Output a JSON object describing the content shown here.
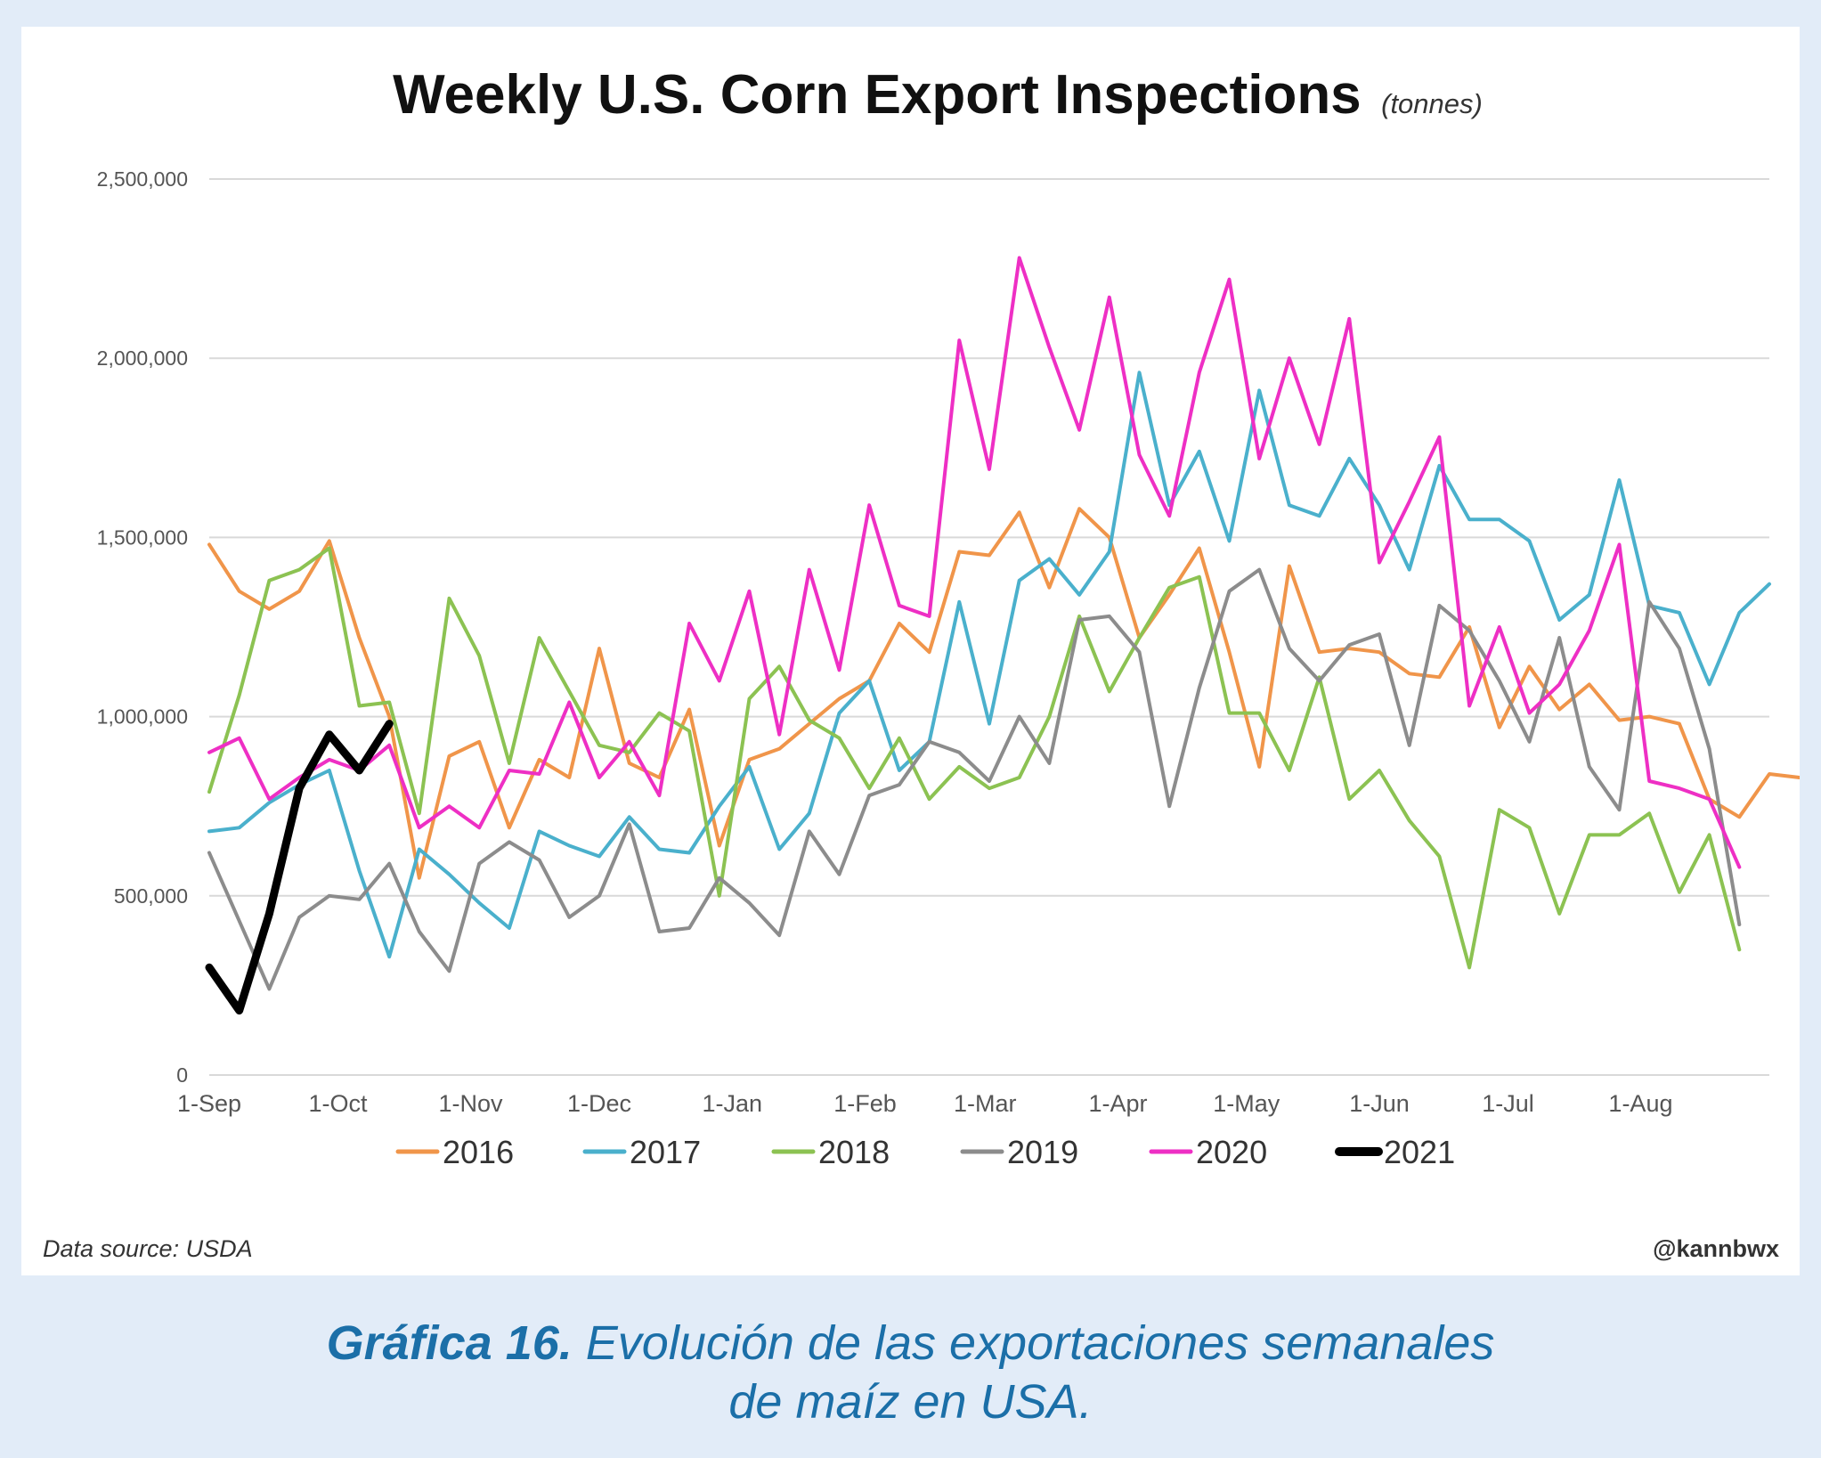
{
  "chart_data": {
    "type": "line",
    "title": "Weekly U.S. Corn Export Inspections",
    "title_unit": "(tonnes)",
    "xlabel": "",
    "ylabel": "",
    "ylim": [
      0,
      2500000
    ],
    "yticks": [
      0,
      500000,
      1000000,
      1500000,
      2000000,
      2500000
    ],
    "ytick_labels": [
      "0",
      "500,000",
      "1,000,000",
      "1,500,000",
      "2,000,000",
      "2,500,000"
    ],
    "xtick_labels": [
      "1-Sep",
      "1-Oct",
      "1-Nov",
      "1-Dec",
      "1-Jan",
      "1-Feb",
      "1-Mar",
      "1-Apr",
      "1-May",
      "1-Jun",
      "1-Jul",
      "1-Aug"
    ],
    "xtick_weeks": [
      0,
      4.29,
      8.71,
      13,
      17.43,
      21.86,
      25.86,
      30.29,
      34.57,
      39,
      43.29,
      47.71
    ],
    "week_count": 52,
    "grid": true,
    "legend_position": "bottom",
    "source": "Data source: USDA",
    "credit": "@kannbwx",
    "series": [
      {
        "name": "2016",
        "color": "#f0954a",
        "width": 4,
        "values": [
          1480000,
          1350000,
          1300000,
          1350000,
          1490000,
          1220000,
          1000000,
          550000,
          890000,
          930000,
          690000,
          880000,
          830000,
          1190000,
          870000,
          830000,
          1020000,
          640000,
          880000,
          910000,
          980000,
          1050000,
          1100000,
          1260000,
          1180000,
          1460000,
          1450000,
          1570000,
          1360000,
          1580000,
          1500000,
          1220000,
          1340000,
          1470000,
          1180000,
          860000,
          1420000,
          1180000,
          1190000,
          1180000,
          1120000,
          1110000,
          1250000,
          970000,
          1140000,
          1020000,
          1090000,
          990000,
          1000000,
          980000,
          770000,
          720000,
          840000,
          830000
        ]
      },
      {
        "name": "2017",
        "color": "#4ab0cc",
        "width": 4,
        "values": [
          680000,
          690000,
          760000,
          810000,
          850000,
          570000,
          330000,
          630000,
          560000,
          480000,
          410000,
          680000,
          640000,
          610000,
          720000,
          630000,
          620000,
          750000,
          860000,
          630000,
          730000,
          1010000,
          1100000,
          850000,
          930000,
          1320000,
          980000,
          1380000,
          1440000,
          1340000,
          1460000,
          1960000,
          1590000,
          1740000,
          1490000,
          1910000,
          1590000,
          1560000,
          1720000,
          1590000,
          1410000,
          1700000,
          1550000,
          1550000,
          1490000,
          1270000,
          1340000,
          1660000,
          1310000,
          1290000,
          1090000,
          1290000,
          1370000
        ]
      },
      {
        "name": "2018",
        "color": "#8cc252",
        "width": 4,
        "values": [
          790000,
          1060000,
          1380000,
          1410000,
          1470000,
          1030000,
          1040000,
          730000,
          1330000,
          1170000,
          870000,
          1220000,
          1070000,
          920000,
          900000,
          1010000,
          960000,
          500000,
          1050000,
          1140000,
          990000,
          940000,
          800000,
          940000,
          770000,
          860000,
          800000,
          830000,
          1000000,
          1280000,
          1070000,
          1220000,
          1360000,
          1390000,
          1010000,
          1010000,
          850000,
          1110000,
          770000,
          850000,
          710000,
          610000,
          300000,
          740000,
          690000,
          450000,
          670000,
          670000,
          730000,
          510000,
          670000,
          350000
        ]
      },
      {
        "name": "2019",
        "color": "#8c8c8c",
        "width": 4,
        "values": [
          620000,
          430000,
          240000,
          440000,
          500000,
          490000,
          590000,
          400000,
          290000,
          590000,
          650000,
          600000,
          440000,
          500000,
          700000,
          400000,
          410000,
          550000,
          480000,
          390000,
          680000,
          560000,
          780000,
          810000,
          930000,
          900000,
          820000,
          1000000,
          870000,
          1270000,
          1280000,
          1180000,
          750000,
          1080000,
          1350000,
          1410000,
          1190000,
          1100000,
          1200000,
          1230000,
          920000,
          1310000,
          1240000,
          1100000,
          930000,
          1220000,
          860000,
          740000,
          1320000,
          1190000,
          910000,
          420000
        ]
      },
      {
        "name": "2020",
        "color": "#ee2fc4",
        "width": 4,
        "values": [
          900000,
          940000,
          770000,
          830000,
          880000,
          850000,
          920000,
          690000,
          750000,
          690000,
          850000,
          840000,
          1040000,
          830000,
          930000,
          780000,
          1260000,
          1100000,
          1350000,
          950000,
          1410000,
          1130000,
          1590000,
          1310000,
          1280000,
          2050000,
          1690000,
          2280000,
          2030000,
          1800000,
          2170000,
          1730000,
          1560000,
          1960000,
          2220000,
          1720000,
          2000000,
          1760000,
          2110000,
          1430000,
          1600000,
          1780000,
          1030000,
          1250000,
          1010000,
          1090000,
          1240000,
          1480000,
          820000,
          800000,
          770000,
          580000
        ]
      },
      {
        "name": "2021",
        "color": "#000000",
        "width": 9,
        "values": [
          300000,
          180000,
          450000,
          800000,
          950000,
          850000,
          980000
        ]
      }
    ]
  },
  "caption": {
    "label": "Gráfica 16.",
    "line1": "Evolución de las exportaciones semanales",
    "line2": "de maíz en USA."
  }
}
